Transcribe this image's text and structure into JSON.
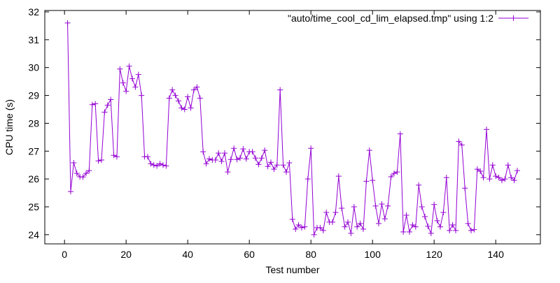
{
  "chart_data": {
    "type": "line",
    "title": "",
    "xlabel": "Test number",
    "ylabel": "CPU time (s)",
    "xlim": [
      -6.4,
      154.5
    ],
    "ylim": [
      23.67,
      32.05
    ],
    "xticks": [
      0,
      20,
      40,
      60,
      80,
      100,
      120,
      140
    ],
    "yticks": [
      24,
      25,
      26,
      27,
      28,
      29,
      30,
      31,
      32
    ],
    "grid": false,
    "legend_position": "top-right",
    "series": [
      {
        "name": "\"auto/time_cool_cd_lim_elapsed.tmp\" using 1:2",
        "color": "#9400d3",
        "marker": "plus",
        "x_start": 1,
        "values": [
          31.6,
          25.55,
          26.58,
          26.2,
          26.08,
          26.07,
          26.2,
          26.3,
          28.67,
          28.7,
          26.65,
          26.68,
          28.4,
          28.65,
          28.85,
          26.85,
          26.8,
          29.95,
          29.45,
          29.15,
          30.05,
          29.6,
          29.3,
          29.75,
          29.0,
          26.8,
          26.8,
          26.55,
          26.5,
          26.47,
          26.55,
          26.5,
          26.47,
          28.9,
          29.2,
          29.0,
          28.8,
          28.55,
          28.5,
          28.95,
          28.55,
          29.2,
          29.3,
          28.9,
          26.98,
          26.55,
          26.72,
          26.68,
          26.68,
          26.93,
          26.63,
          26.93,
          26.25,
          26.7,
          27.1,
          26.7,
          26.75,
          27.08,
          26.72,
          26.98,
          26.98,
          26.75,
          26.52,
          26.75,
          27.03,
          26.45,
          26.6,
          26.35,
          26.5,
          29.2,
          26.5,
          26.25,
          26.58,
          24.55,
          24.2,
          24.35,
          24.25,
          24.28,
          26.0,
          27.1,
          24.0,
          24.25,
          24.25,
          24.15,
          24.8,
          24.45,
          24.45,
          24.8,
          26.1,
          24.95,
          24.28,
          24.45,
          24.05,
          25.0,
          24.28,
          24.4,
          24.2,
          25.92,
          27.03,
          25.95,
          25.03,
          24.4,
          25.1,
          24.57,
          25.03,
          26.08,
          26.2,
          26.25,
          27.62,
          24.1,
          24.7,
          24.1,
          24.35,
          24.28,
          25.78,
          25.0,
          24.65,
          24.3,
          24.05,
          25.08,
          24.5,
          24.28,
          24.8,
          26.05,
          24.15,
          24.35,
          24.15,
          27.35,
          27.22,
          25.67,
          24.4,
          24.15,
          24.18,
          26.35,
          26.28,
          26.05,
          27.78,
          26.0,
          26.5,
          26.1,
          26.05,
          25.95,
          26.0,
          26.5,
          26.05,
          25.95,
          26.3
        ]
      }
    ]
  }
}
